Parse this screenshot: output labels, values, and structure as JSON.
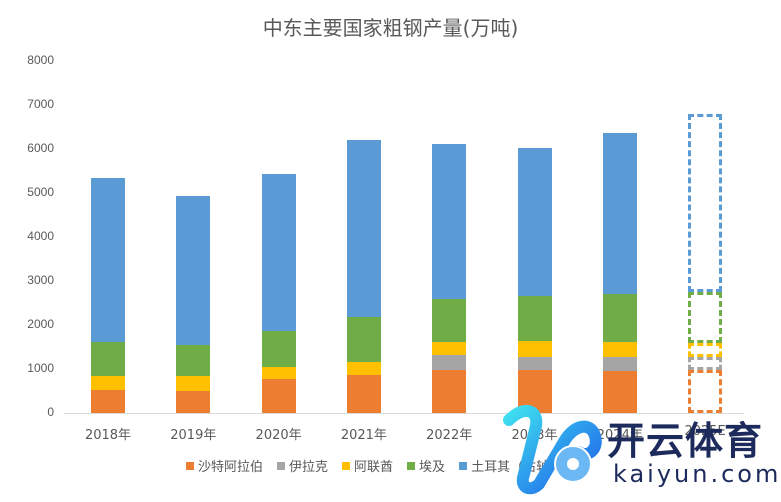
{
  "chart_data": {
    "type": "bar",
    "stacked": true,
    "title": "中东主要国家粗钢产量(万吨)",
    "xlabel": "",
    "ylabel": "",
    "ylim": [
      0,
      8000
    ],
    "yticks": [
      0,
      1000,
      2000,
      3000,
      4000,
      5000,
      6000,
      7000,
      8000
    ],
    "grid": false,
    "legend_position": "bottom",
    "categories": [
      "2018年",
      "2019年",
      "2020年",
      "2021年",
      "2022年",
      "2023年",
      "2024年",
      "2025E"
    ],
    "series": [
      {
        "name": "沙特阿拉伯",
        "color": "#ED7D31",
        "values": [
          520,
          500,
          770,
          870,
          980,
          980,
          950,
          970
        ]
      },
      {
        "name": "伊拉克",
        "color": "#A5A5A5",
        "values": [
          0,
          0,
          0,
          0,
          340,
          290,
          320,
          300
        ]
      },
      {
        "name": "阿联酋",
        "color": "#FFC000",
        "values": [
          320,
          340,
          280,
          290,
          290,
          370,
          350,
          330
        ]
      },
      {
        "name": "埃及",
        "color": "#70AD47",
        "values": [
          770,
          710,
          810,
          1020,
          980,
          1020,
          1080,
          1150
        ]
      },
      {
        "name": "土耳其（右轴）",
        "color": "#5B9BD5",
        "values": [
          3730,
          3380,
          3570,
          4020,
          3520,
          3360,
          3660,
          4050
        ]
      }
    ],
    "projected_categories": [
      "2025E"
    ],
    "projected_style": "dashed outline"
  },
  "legend": [
    {
      "label": "沙特阿拉伯",
      "color": "#ED7D31"
    },
    {
      "label": "伊拉克",
      "color": "#A5A5A5"
    },
    {
      "label": "阿联酋",
      "color": "#FFC000"
    },
    {
      "label": "埃及",
      "color": "#70AD47"
    },
    {
      "label": "土耳其（右轴）",
      "color": "#5B9BD5"
    }
  ],
  "watermark": {
    "cn": "开云体育",
    "en": "kaiyun.com"
  }
}
